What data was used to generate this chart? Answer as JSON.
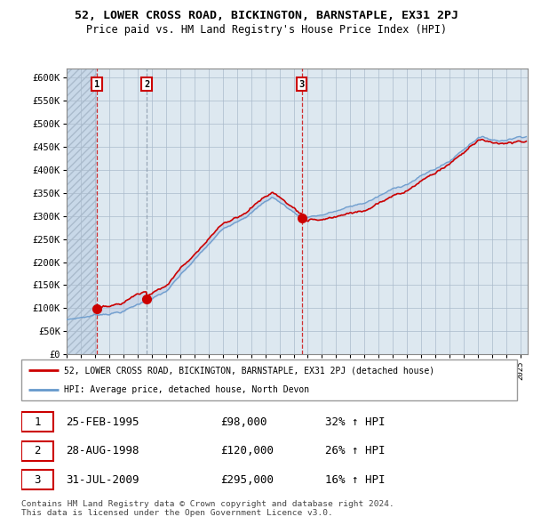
{
  "title": "52, LOWER CROSS ROAD, BICKINGTON, BARNSTAPLE, EX31 2PJ",
  "subtitle": "Price paid vs. HM Land Registry's House Price Index (HPI)",
  "ylabel_ticks": [
    "£0",
    "£50K",
    "£100K",
    "£150K",
    "£200K",
    "£250K",
    "£300K",
    "£350K",
    "£400K",
    "£450K",
    "£500K",
    "£550K",
    "£600K"
  ],
  "ytick_values": [
    0,
    50000,
    100000,
    150000,
    200000,
    250000,
    300000,
    350000,
    400000,
    450000,
    500000,
    550000,
    600000
  ],
  "xlim_start": 1993.0,
  "xlim_end": 2025.5,
  "ylim_min": 0,
  "ylim_max": 620000,
  "sale_dates": [
    1995.14,
    1998.65,
    2009.58
  ],
  "sale_prices": [
    98000,
    120000,
    295000
  ],
  "sale_labels": [
    "1",
    "2",
    "3"
  ],
  "sale_vline_styles": [
    "red_dashed",
    "blue_dashed",
    "red_dashed"
  ],
  "legend_line1": "52, LOWER CROSS ROAD, BICKINGTON, BARNSTAPLE, EX31 2PJ (detached house)",
  "legend_line2": "HPI: Average price, detached house, North Devon",
  "table_rows": [
    [
      "1",
      "25-FEB-1995",
      "£98,000",
      "32% ↑ HPI"
    ],
    [
      "2",
      "28-AUG-1998",
      "£120,000",
      "26% ↑ HPI"
    ],
    [
      "3",
      "31-JUL-2009",
      "£295,000",
      "16% ↑ HPI"
    ]
  ],
  "footnote": "Contains HM Land Registry data © Crown copyright and database right 2024.\nThis data is licensed under the Open Government Licence v3.0.",
  "red_color": "#cc0000",
  "blue_color": "#6699cc",
  "hatch_bg_color": "#dde8f0",
  "plain_bg_color": "#dde8f0",
  "grid_color": "#aabbcc",
  "fill_color": "#aabbdd"
}
